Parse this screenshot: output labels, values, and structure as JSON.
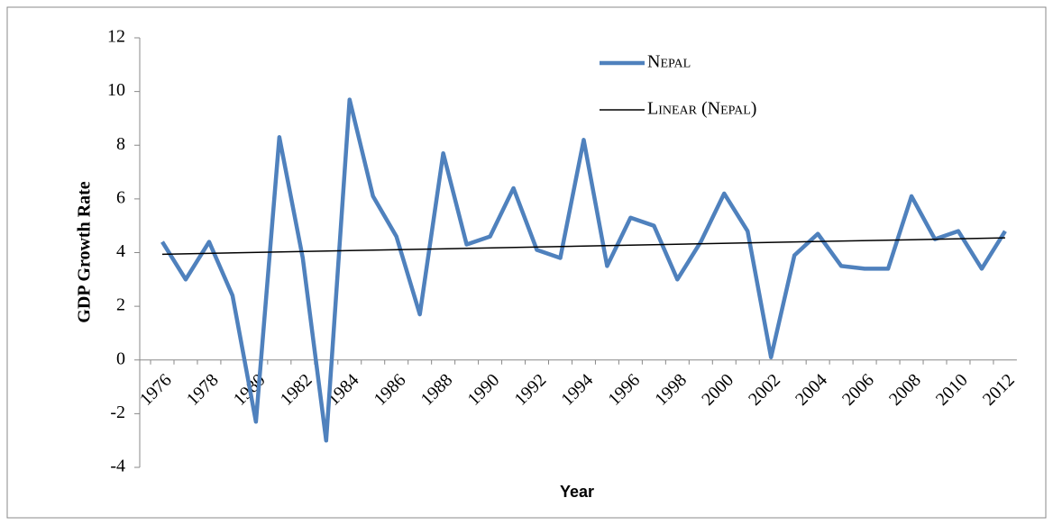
{
  "chart_data": {
    "type": "line",
    "x_label": "Year",
    "y_label": "GDP Growth Rate",
    "categories": [
      "1976",
      null,
      "1978",
      null,
      "1980",
      null,
      "1982",
      null,
      "1984",
      null,
      "1986",
      null,
      "1988",
      null,
      "1990",
      null,
      "1992",
      null,
      "1994",
      null,
      "1996",
      null,
      "1998",
      null,
      "2000",
      null,
      "2002",
      null,
      "2004",
      null,
      "2006",
      null,
      "2008",
      null,
      "2010",
      null,
      "2012"
    ],
    "series": [
      {
        "name": "Nepal",
        "color": "#4f81bd",
        "values": [
          4.4,
          3.0,
          4.4,
          2.4,
          -2.3,
          8.3,
          3.8,
          -3.0,
          9.7,
          6.1,
          4.6,
          1.7,
          7.7,
          4.3,
          4.6,
          6.4,
          4.1,
          3.8,
          8.2,
          3.5,
          5.3,
          5.0,
          3.0,
          4.4,
          6.2,
          4.8,
          0.1,
          3.9,
          4.7,
          3.5,
          3.4,
          3.4,
          6.1,
          4.5,
          4.8,
          3.4,
          4.8
        ]
      },
      {
        "name": "Linear (Nepal)",
        "color": "#000000",
        "trend": "linear"
      }
    ],
    "ylim": [
      -4,
      12
    ],
    "yticks": [
      -4,
      -2,
      0,
      2,
      4,
      6,
      8,
      10,
      12
    ],
    "grid": false
  }
}
